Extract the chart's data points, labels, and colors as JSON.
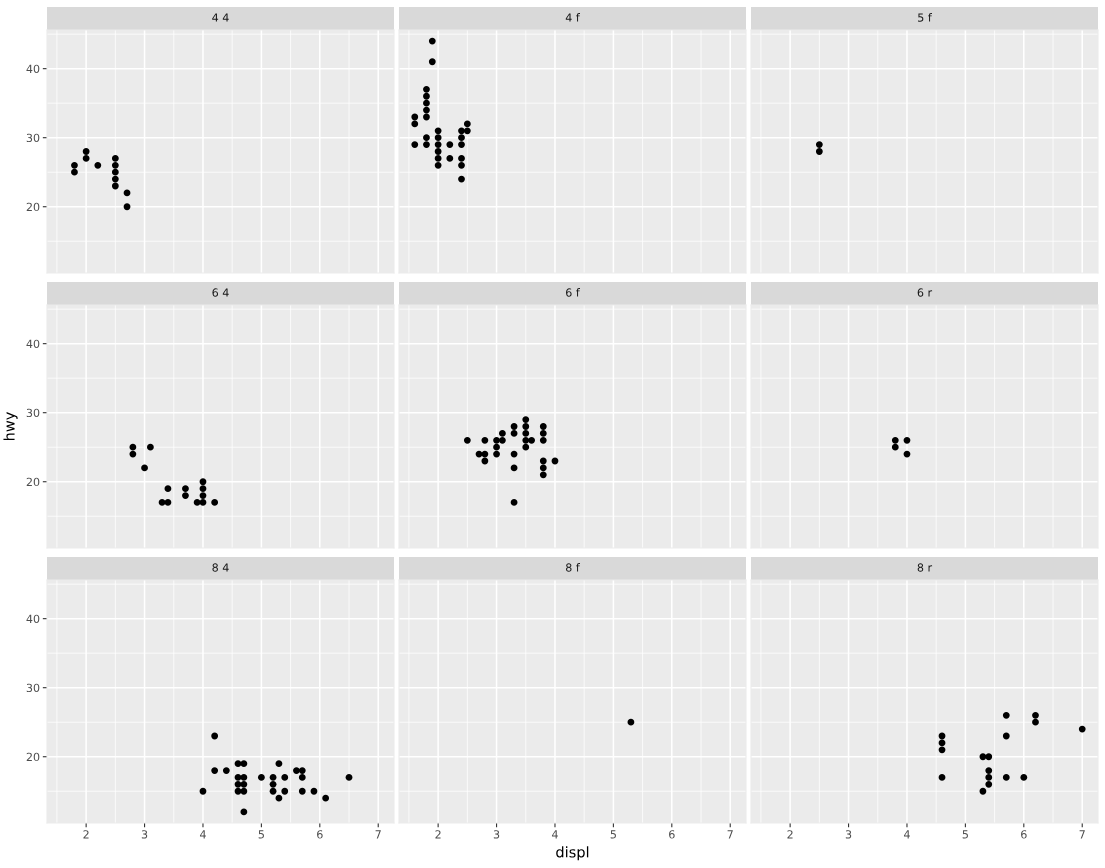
{
  "chart_data": [
    {
      "type": "scatter",
      "title": "4 4",
      "x": [
        1.8,
        1.8,
        2.0,
        2.0,
        2.2,
        2.5,
        2.5,
        2.5,
        2.5,
        2.5,
        2.7,
        2.7
      ],
      "values": [
        26,
        25,
        28,
        27,
        26,
        27,
        26,
        25,
        24,
        23,
        22,
        20
      ],
      "color": "#000000",
      "marker": "circle",
      "xlim": [
        1.33,
        7.27
      ],
      "ylim": [
        10.4,
        45.6
      ],
      "xticks": [
        2,
        3,
        4,
        5,
        6,
        7
      ],
      "yticks": [
        20,
        30,
        40
      ],
      "grid": true,
      "tick_labels": "y"
    },
    {
      "type": "scatter",
      "title": "4 f",
      "x": [
        1.6,
        1.6,
        1.6,
        1.8,
        1.8,
        1.8,
        1.8,
        1.8,
        1.8,
        1.8,
        1.9,
        1.9,
        2.0,
        2.0,
        2.0,
        2.0,
        2.0,
        2.0,
        2.2,
        2.2,
        2.4,
        2.4,
        2.4,
        2.4,
        2.4,
        2.4,
        2.5,
        2.5
      ],
      "values": [
        33,
        32,
        29,
        37,
        36,
        35,
        34,
        33,
        30,
        29,
        44,
        41,
        31,
        30,
        29,
        28,
        27,
        26,
        29,
        27,
        31,
        30,
        29,
        27,
        26,
        24,
        32,
        31
      ],
      "color": "#000000",
      "marker": "circle",
      "xlim": [
        1.33,
        7.27
      ],
      "ylim": [
        10.4,
        45.6
      ],
      "xticks": [
        2,
        3,
        4,
        5,
        6,
        7
      ],
      "yticks": [
        20,
        30,
        40
      ],
      "grid": true,
      "tick_labels": false
    },
    {
      "type": "scatter",
      "title": "5 f",
      "x": [
        2.5,
        2.5
      ],
      "values": [
        29,
        28
      ],
      "color": "#000000",
      "marker": "circle",
      "xlim": [
        1.33,
        7.27
      ],
      "ylim": [
        10.4,
        45.6
      ],
      "xticks": [
        2,
        3,
        4,
        5,
        6,
        7
      ],
      "yticks": [
        20,
        30,
        40
      ],
      "grid": true,
      "tick_labels": false
    },
    {
      "type": "scatter",
      "title": "6 4",
      "ylabel": "hwy",
      "x": [
        2.8,
        2.8,
        3.0,
        3.1,
        3.3,
        3.4,
        3.4,
        3.7,
        3.7,
        3.9,
        4.0,
        4.0,
        4.0,
        4.0,
        4.2
      ],
      "values": [
        25,
        24,
        22,
        25,
        17,
        17,
        19,
        19,
        18,
        17,
        20,
        19,
        18,
        17,
        17
      ],
      "color": "#000000",
      "marker": "circle",
      "xlim": [
        1.33,
        7.27
      ],
      "ylim": [
        10.4,
        45.6
      ],
      "xticks": [
        2,
        3,
        4,
        5,
        6,
        7
      ],
      "yticks": [
        20,
        30,
        40
      ],
      "grid": true,
      "tick_labels": "y"
    },
    {
      "type": "scatter",
      "title": "6 f",
      "x": [
        2.5,
        2.7,
        2.8,
        2.8,
        2.8,
        3.0,
        3.0,
        3.0,
        3.1,
        3.1,
        3.3,
        3.3,
        3.3,
        3.3,
        3.3,
        3.5,
        3.5,
        3.5,
        3.5,
        3.5,
        3.6,
        3.8,
        3.8,
        3.8,
        3.8,
        3.8,
        3.8,
        4.0
      ],
      "values": [
        26,
        24,
        26,
        24,
        23,
        26,
        25,
        24,
        27,
        26,
        28,
        27,
        24,
        22,
        17,
        29,
        28,
        27,
        26,
        25,
        26,
        28,
        27,
        26,
        23,
        22,
        21,
        23
      ],
      "color": "#000000",
      "marker": "circle",
      "xlim": [
        1.33,
        7.27
      ],
      "ylim": [
        10.4,
        45.6
      ],
      "xticks": [
        2,
        3,
        4,
        5,
        6,
        7
      ],
      "yticks": [
        20,
        30,
        40
      ],
      "grid": true,
      "tick_labels": false
    },
    {
      "type": "scatter",
      "title": "6 r",
      "x": [
        3.8,
        3.8,
        4.0,
        4.0
      ],
      "values": [
        26,
        25,
        26,
        24
      ],
      "color": "#000000",
      "marker": "circle",
      "xlim": [
        1.33,
        7.27
      ],
      "ylim": [
        10.4,
        45.6
      ],
      "xticks": [
        2,
        3,
        4,
        5,
        6,
        7
      ],
      "yticks": [
        20,
        30,
        40
      ],
      "grid": true,
      "tick_labels": false
    },
    {
      "type": "scatter",
      "title": "8 4",
      "x": [
        4.0,
        4.2,
        4.2,
        4.4,
        4.6,
        4.6,
        4.6,
        4.6,
        4.7,
        4.7,
        4.7,
        4.7,
        4.7,
        5.0,
        5.2,
        5.2,
        5.2,
        5.3,
        5.3,
        5.4,
        5.4,
        5.6,
        5.7,
        5.7,
        5.7,
        5.9,
        6.1,
        6.5
      ],
      "values": [
        15,
        23,
        18,
        18,
        19,
        17,
        16,
        15,
        19,
        17,
        16,
        15,
        12,
        17,
        17,
        16,
        15,
        19,
        14,
        17,
        15,
        18,
        18,
        17,
        15,
        15,
        14,
        17
      ],
      "color": "#000000",
      "marker": "circle",
      "xlim": [
        1.33,
        7.27
      ],
      "ylim": [
        10.4,
        45.6
      ],
      "xticks": [
        2,
        3,
        4,
        5,
        6,
        7
      ],
      "yticks": [
        20,
        30,
        40
      ],
      "grid": true
    },
    {
      "type": "scatter",
      "title": "8 f",
      "xlabel": "displ",
      "x": [
        5.3
      ],
      "values": [
        25
      ],
      "color": "#000000",
      "marker": "circle",
      "xlim": [
        1.33,
        7.27
      ],
      "ylim": [
        10.4,
        45.6
      ],
      "xticks": [
        2,
        3,
        4,
        5,
        6,
        7
      ],
      "yticks": [
        20,
        30,
        40
      ],
      "grid": true,
      "tick_labels": "x"
    },
    {
      "type": "scatter",
      "title": "8 r",
      "x": [
        4.6,
        4.6,
        4.6,
        4.6,
        5.3,
        5.3,
        5.4,
        5.4,
        5.4,
        5.4,
        5.7,
        5.7,
        5.7,
        6.0,
        6.2,
        6.2,
        7.0
      ],
      "values": [
        23,
        22,
        21,
        17,
        20,
        15,
        20,
        18,
        17,
        16,
        26,
        23,
        17,
        17,
        26,
        25,
        24
      ],
      "color": "#000000",
      "marker": "circle",
      "xlim": [
        1.33,
        7.27
      ],
      "ylim": [
        10.4,
        45.6
      ],
      "xticks": [
        2,
        3,
        4,
        5,
        6,
        7
      ],
      "yticks": [
        20,
        30,
        40
      ],
      "grid": true,
      "tick_labels": "x"
    }
  ]
}
